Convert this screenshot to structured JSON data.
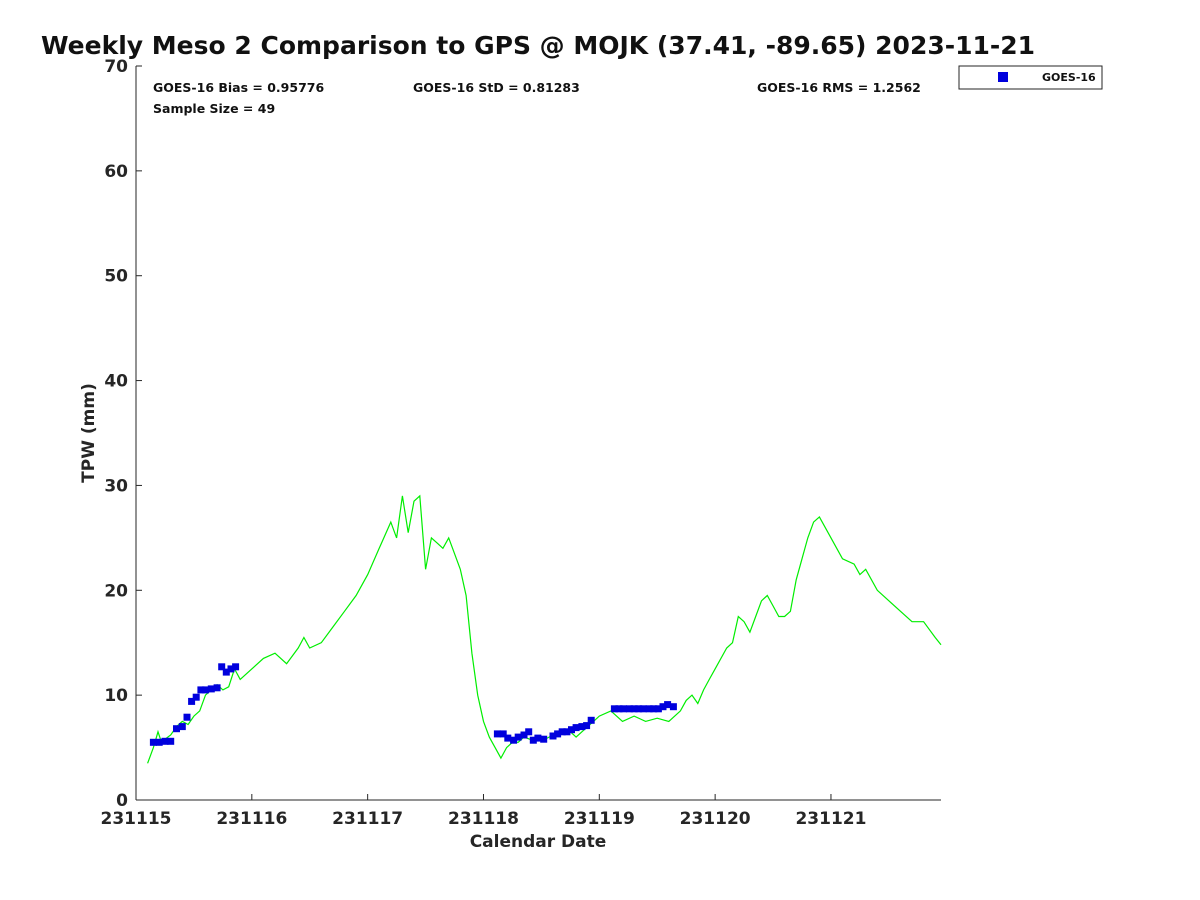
{
  "chart_data": {
    "type": "scatter",
    "title": "Weekly Meso 2 Comparison to GPS @ MOJK (37.41, -89.65) 2023-11-21",
    "xlabel": "Calendar Date",
    "ylabel": "TPW (mm)",
    "xlim": [
      231115.0,
      231121.95
    ],
    "ylim": [
      0,
      70
    ],
    "yticks": [
      0,
      10,
      20,
      30,
      40,
      50,
      60,
      70
    ],
    "xticks": [
      231115,
      231116,
      231117,
      231118,
      231119,
      231120,
      231121
    ],
    "xtick_labels": [
      "231115",
      "231116",
      "231117",
      "231118",
      "231119",
      "231120",
      "231121"
    ],
    "grid": false,
    "legend_position": "top-right",
    "stats": {
      "bias": "GOES-16 Bias = 0.95776",
      "std": "GOES-16 StD = 0.81283",
      "rms": "GOES-16 RMS = 1.2562",
      "sample_size": "Sample Size = 49"
    },
    "series": [
      {
        "name": "GOES-16",
        "kind": "scatter",
        "marker": "square",
        "color": "#0000dd",
        "x": [
          231115.15,
          231115.2,
          231115.25,
          231115.3,
          231115.35,
          231115.4,
          231115.44,
          231115.48,
          231115.52,
          231115.56,
          231115.6,
          231115.65,
          231115.7,
          231115.74,
          231115.78,
          231115.82,
          231115.86,
          231118.12,
          231118.17,
          231118.21,
          231118.26,
          231118.3,
          231118.35,
          231118.39,
          231118.43,
          231118.47,
          231118.52,
          231118.6,
          231118.64,
          231118.68,
          231118.72,
          231118.76,
          231118.8,
          231118.85,
          231118.89,
          231118.93,
          231119.13,
          231119.17,
          231119.21,
          231119.26,
          231119.3,
          231119.34,
          231119.38,
          231119.43,
          231119.47,
          231119.51,
          231119.55,
          231119.59,
          231119.64
        ],
        "y": [
          5.5,
          5.5,
          5.6,
          5.6,
          6.8,
          7.0,
          7.9,
          9.4,
          9.8,
          10.5,
          10.5,
          10.6,
          10.7,
          12.7,
          12.2,
          12.5,
          12.7,
          6.3,
          6.3,
          5.9,
          5.7,
          6.0,
          6.2,
          6.5,
          5.7,
          5.9,
          5.8,
          6.1,
          6.3,
          6.5,
          6.5,
          6.7,
          6.9,
          7.0,
          7.1,
          7.6,
          8.7,
          8.7,
          8.7,
          8.7,
          8.7,
          8.7,
          8.7,
          8.7,
          8.7,
          8.7,
          8.9,
          9.1,
          8.9
        ]
      },
      {
        "kind": "line",
        "color": "#00ee00",
        "x": [
          231115.1,
          231115.15,
          231115.19,
          231115.22,
          231115.25,
          231115.3,
          231115.35,
          231115.4,
          231115.45,
          231115.5,
          231115.55,
          231115.6,
          231115.65,
          231115.7,
          231115.75,
          231115.8,
          231115.85,
          231115.9,
          231115.95,
          231116.0,
          231116.1,
          231116.2,
          231116.3,
          231116.4,
          231116.45,
          231116.5,
          231116.6,
          231116.7,
          231116.8,
          231116.9,
          231117.0,
          231117.1,
          231117.2,
          231117.25,
          231117.3,
          231117.35,
          231117.4,
          231117.45,
          231117.5,
          231117.55,
          231117.6,
          231117.65,
          231117.7,
          231117.75,
          231117.8,
          231117.85,
          231117.9,
          231117.95,
          231118.0,
          231118.05,
          231118.1,
          231118.15,
          231118.2,
          231118.25,
          231118.3,
          231118.35,
          231118.4,
          231118.45,
          231118.5,
          231118.55,
          231118.6,
          231118.65,
          231118.7,
          231118.75,
          231118.8,
          231118.85,
          231118.9,
          231118.95,
          231119.0,
          231119.1,
          231119.2,
          231119.3,
          231119.4,
          231119.5,
          231119.6,
          231119.7,
          231119.75,
          231119.8,
          231119.85,
          231119.9,
          231119.95,
          231120.0,
          231120.1,
          231120.15,
          231120.2,
          231120.25,
          231120.3,
          231120.35,
          231120.4,
          231120.45,
          231120.5,
          231120.55,
          231120.6,
          231120.65,
          231120.7,
          231120.75,
          231120.8,
          231120.85,
          231120.9,
          231121.0,
          231121.1,
          231121.2,
          231121.25,
          231121.3,
          231121.4,
          231121.5,
          231121.6,
          231121.7,
          231121.8,
          231121.9,
          231121.95
        ],
        "y": [
          3.5,
          5.0,
          6.5,
          5.5,
          5.8,
          6.2,
          7.0,
          7.5,
          7.2,
          8.0,
          8.5,
          10.0,
          10.5,
          11.0,
          10.5,
          10.8,
          12.5,
          11.5,
          12.0,
          12.5,
          13.5,
          14.0,
          13.0,
          14.5,
          15.5,
          14.5,
          15.0,
          16.5,
          18.0,
          19.5,
          21.5,
          24.0,
          26.5,
          25.0,
          29.0,
          25.5,
          28.5,
          29.0,
          22.0,
          25.0,
          24.5,
          24.0,
          25.0,
          23.5,
          22.0,
          19.5,
          14.0,
          10.0,
          7.5,
          6.0,
          5.0,
          4.0,
          5.0,
          5.5,
          5.5,
          6.0,
          5.8,
          6.0,
          5.7,
          5.9,
          6.2,
          6.4,
          6.3,
          6.5,
          6.0,
          6.5,
          7.0,
          7.5,
          8.0,
          8.5,
          7.5,
          8.0,
          7.5,
          7.8,
          7.5,
          8.5,
          9.5,
          10.0,
          9.2,
          10.5,
          11.5,
          12.5,
          14.5,
          15.0,
          17.5,
          17.0,
          16.0,
          17.5,
          19.0,
          19.5,
          18.5,
          17.5,
          17.5,
          18.0,
          21.0,
          23.0,
          25.0,
          26.5,
          27.0,
          25.0,
          23.0,
          22.5,
          21.5,
          22.0,
          20.0,
          19.0,
          18.0,
          17.0,
          17.0,
          15.5,
          14.8
        ]
      }
    ]
  }
}
